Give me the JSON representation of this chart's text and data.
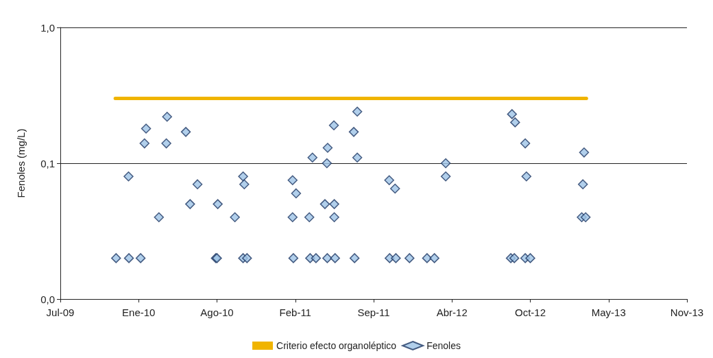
{
  "chart_data": {
    "type": "scatter",
    "ylabel": "Fenoles (mg/L)",
    "log": "y",
    "grid": "y",
    "legend": "bottom",
    "marker": "diamond",
    "xlim": [
      "2009-07-01",
      "2013-11-25"
    ],
    "xticks": [
      {
        "value": "2009-07-01",
        "label": "Jul-09"
      },
      {
        "value": "2010-01-18",
        "label": "Ene-10"
      },
      {
        "value": "2010-08-07",
        "label": "Ago-10"
      },
      {
        "value": "2011-02-24",
        "label": "Feb-11"
      },
      {
        "value": "2011-09-13",
        "label": "Sep-11"
      },
      {
        "value": "2012-04-01",
        "label": "Abr-12"
      },
      {
        "value": "2012-10-19",
        "label": "Oct-12"
      },
      {
        "value": "2013-05-08",
        "label": "May-13"
      },
      {
        "value": "2013-11-25",
        "label": "Nov-13"
      }
    ],
    "ylim": [
      0.01,
      1
    ],
    "yticks": [
      {
        "value": 0.01,
        "label": "0,0"
      },
      {
        "value": 0.1,
        "label": "0,1"
      },
      {
        "value": 1,
        "label": "1,0"
      }
    ],
    "series": [
      {
        "name": "Criterio efecto organoléptico",
        "type": "line",
        "color": "#f0b400",
        "marker": "none",
        "x": [
          "2009-11-19",
          "2013-03-12"
        ],
        "values": [
          0.3,
          0.3
        ]
      },
      {
        "name": "Fenoles",
        "color": "#9dc3e6",
        "x": [
          "2009-11-21",
          "2009-12-23",
          "2009-12-24",
          "2010-01-23",
          "2010-02-06",
          "2010-02-02",
          "2010-03-11",
          "2010-04-01",
          "2010-03-30",
          "2010-05-19",
          "2010-05-30",
          "2010-06-18",
          "2010-08-04",
          "2010-08-07",
          "2010-08-09",
          "2010-09-22",
          "2010-10-13",
          "2010-10-16",
          "2010-10-13",
          "2010-10-23",
          "2011-02-17",
          "2011-02-17",
          "2011-02-19",
          "2011-02-26",
          "2011-04-01",
          "2011-04-03",
          "2011-04-09",
          "2011-04-18",
          "2011-05-11",
          "2011-05-16",
          "2011-05-17",
          "2011-05-18",
          "2011-06-03",
          "2011-06-04",
          "2011-06-04",
          "2011-06-06",
          "2011-07-24",
          "2011-07-26",
          "2011-08-02",
          "2011-08-02",
          "2011-10-23",
          "2011-10-24",
          "2011-11-07",
          "2011-11-09",
          "2011-12-14",
          "2012-01-28",
          "2012-02-16",
          "2012-03-16",
          "2012-03-16",
          "2012-08-30",
          "2012-09-02",
          "2012-09-08",
          "2012-09-10",
          "2012-10-06",
          "2012-10-06",
          "2012-10-09",
          "2012-10-19",
          "2013-02-28",
          "2013-03-03",
          "2013-03-06",
          "2013-03-10"
        ],
        "values": [
          0.02,
          0.08,
          0.02,
          0.02,
          0.18,
          0.14,
          0.04,
          0.22,
          0.14,
          0.17,
          0.05,
          0.07,
          0.02,
          0.02,
          0.05,
          0.04,
          0.08,
          0.07,
          0.02,
          0.02,
          0.075,
          0.04,
          0.02,
          0.06,
          0.04,
          0.02,
          0.11,
          0.02,
          0.05,
          0.1,
          0.02,
          0.13,
          0.19,
          0.05,
          0.04,
          0.02,
          0.17,
          0.02,
          0.24,
          0.11,
          0.075,
          0.02,
          0.065,
          0.02,
          0.02,
          0.02,
          0.02,
          0.1,
          0.08,
          0.02,
          0.23,
          0.02,
          0.2,
          0.14,
          0.02,
          0.08,
          0.02,
          0.04,
          0.07,
          0.12,
          0.04
        ]
      }
    ]
  }
}
